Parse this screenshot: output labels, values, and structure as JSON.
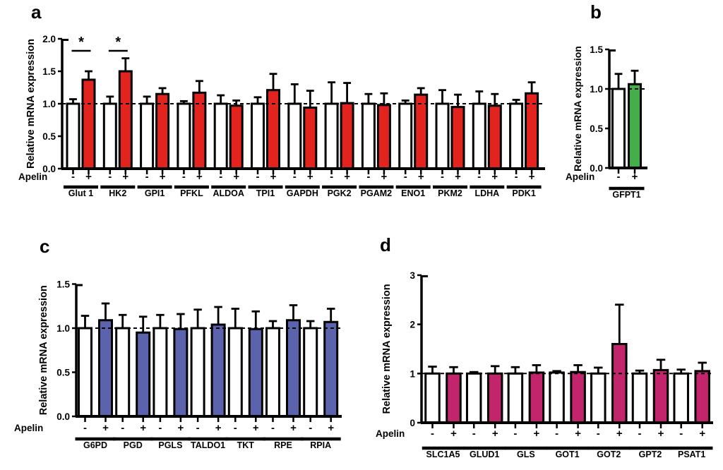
{
  "figure": {
    "background": "#ffffff",
    "axis_color": "#000000",
    "control_fill": "#ffffff"
  },
  "chart_data": [
    {
      "id": "a",
      "panel_label": "a",
      "type": "bar",
      "title": "",
      "ylabel": "Relative mRNA expression",
      "xlabel": "Apelin",
      "condition_labels": [
        "-",
        "+"
      ],
      "ylim": [
        0,
        2.0
      ],
      "yticks": [
        0.0,
        0.5,
        1.0,
        1.5,
        2.0
      ],
      "ytick_labels": [
        "0.0",
        "0.5",
        "1.0",
        "1.5",
        "2.0"
      ],
      "dashed_line_y": 1.0,
      "grid": false,
      "legend": "none",
      "treated_fill": "#e3231d",
      "categories": [
        "Glut 1",
        "HK2",
        "GPI1",
        "PFKL",
        "ALDOA",
        "TPI1",
        "GAPDH",
        "PGK2",
        "PGAM2",
        "ENO1",
        "PKM2",
        "LDHA",
        "PDK1"
      ],
      "series": [
        {
          "name": "Apelin -",
          "values": [
            1.0,
            1.0,
            1.0,
            1.0,
            1.0,
            1.0,
            1.0,
            1.0,
            1.0,
            1.0,
            1.0,
            1.0,
            1.0
          ],
          "errors": [
            0.07,
            0.11,
            0.11,
            0.04,
            0.13,
            0.1,
            0.3,
            0.33,
            0.15,
            0.05,
            0.21,
            0.19,
            0.06
          ]
        },
        {
          "name": "Apelin +",
          "values": [
            1.37,
            1.5,
            1.15,
            1.17,
            0.97,
            1.21,
            0.94,
            1.01,
            0.98,
            1.14,
            0.95,
            0.97,
            1.16
          ],
          "errors": [
            0.13,
            0.2,
            0.09,
            0.18,
            0.08,
            0.25,
            0.26,
            0.31,
            0.18,
            0.1,
            0.19,
            0.18,
            0.17
          ]
        }
      ],
      "significance": [
        {
          "category": "Glut 1",
          "label": "*"
        },
        {
          "category": "HK2",
          "label": "*"
        }
      ]
    },
    {
      "id": "b",
      "panel_label": "b",
      "type": "bar",
      "title": "",
      "ylabel": "Relative mRNA expression",
      "xlabel": "Apelin",
      "condition_labels": [
        "-",
        "+"
      ],
      "ylim": [
        0,
        1.5
      ],
      "yticks": [
        0.0,
        0.5,
        1.0,
        1.5
      ],
      "ytick_labels": [
        "0.0",
        "0.5",
        "1.0",
        "1.5"
      ],
      "dashed_line_y": 1.0,
      "grid": false,
      "legend": "none",
      "treated_fill": "#44ae4b",
      "categories": [
        "GFPT1"
      ],
      "series": [
        {
          "name": "Apelin -",
          "values": [
            1.0
          ],
          "errors": [
            0.19
          ]
        },
        {
          "name": "Apelin +",
          "values": [
            1.06
          ],
          "errors": [
            0.17
          ]
        }
      ],
      "significance": []
    },
    {
      "id": "c",
      "panel_label": "c",
      "type": "bar",
      "title": "",
      "ylabel": "Relative mRNA expression",
      "xlabel": "Apelin",
      "condition_labels": [
        "-",
        "+"
      ],
      "ylim": [
        0,
        1.5
      ],
      "yticks": [
        0.0,
        0.5,
        1.0,
        1.5
      ],
      "ytick_labels": [
        "0.0",
        "0.5",
        "1.0",
        "1.5"
      ],
      "dashed_line_y": 1.0,
      "grid": false,
      "legend": "none",
      "treated_fill": "#5c63ad",
      "categories": [
        "G6PD",
        "PGD",
        "PGLS",
        "TALDO1",
        "TKT",
        "RPE",
        "RPIA"
      ],
      "series": [
        {
          "name": "Apelin -",
          "values": [
            1.0,
            1.0,
            1.0,
            1.0,
            1.0,
            1.0,
            1.0
          ],
          "errors": [
            0.14,
            0.15,
            0.15,
            0.21,
            0.22,
            0.08,
            0.08
          ]
        },
        {
          "name": "Apelin +",
          "values": [
            1.09,
            0.95,
            0.99,
            1.04,
            0.99,
            1.09,
            1.07
          ],
          "errors": [
            0.19,
            0.18,
            0.17,
            0.2,
            0.2,
            0.17,
            0.15
          ]
        }
      ],
      "significance": []
    },
    {
      "id": "d",
      "panel_label": "d",
      "type": "bar",
      "title": "",
      "ylabel": "Relative mRNA expression",
      "xlabel": "Apelin",
      "condition_labels": [
        "-",
        "+"
      ],
      "ylim": [
        0,
        3
      ],
      "yticks": [
        0,
        1,
        2,
        3
      ],
      "ytick_labels": [
        "0",
        "1",
        "2",
        "3"
      ],
      "dashed_line_y": 1.0,
      "grid": false,
      "legend": "none",
      "treated_fill": "#c2256c",
      "categories": [
        "SLC1A5",
        "GLUD1",
        "GLS",
        "GOT1",
        "GOT2",
        "GPT2",
        "PSAT1"
      ],
      "series": [
        {
          "name": "Apelin -",
          "values": [
            1.0,
            1.0,
            1.0,
            1.02,
            1.0,
            1.0,
            1.0
          ],
          "errors": [
            0.14,
            0.03,
            0.13,
            0.03,
            0.12,
            0.06,
            0.08
          ]
        },
        {
          "name": "Apelin +",
          "values": [
            1.0,
            1.0,
            1.02,
            1.03,
            1.6,
            1.07,
            1.05
          ],
          "errors": [
            0.13,
            0.15,
            0.15,
            0.14,
            0.8,
            0.21,
            0.17
          ]
        }
      ],
      "significance": []
    }
  ]
}
